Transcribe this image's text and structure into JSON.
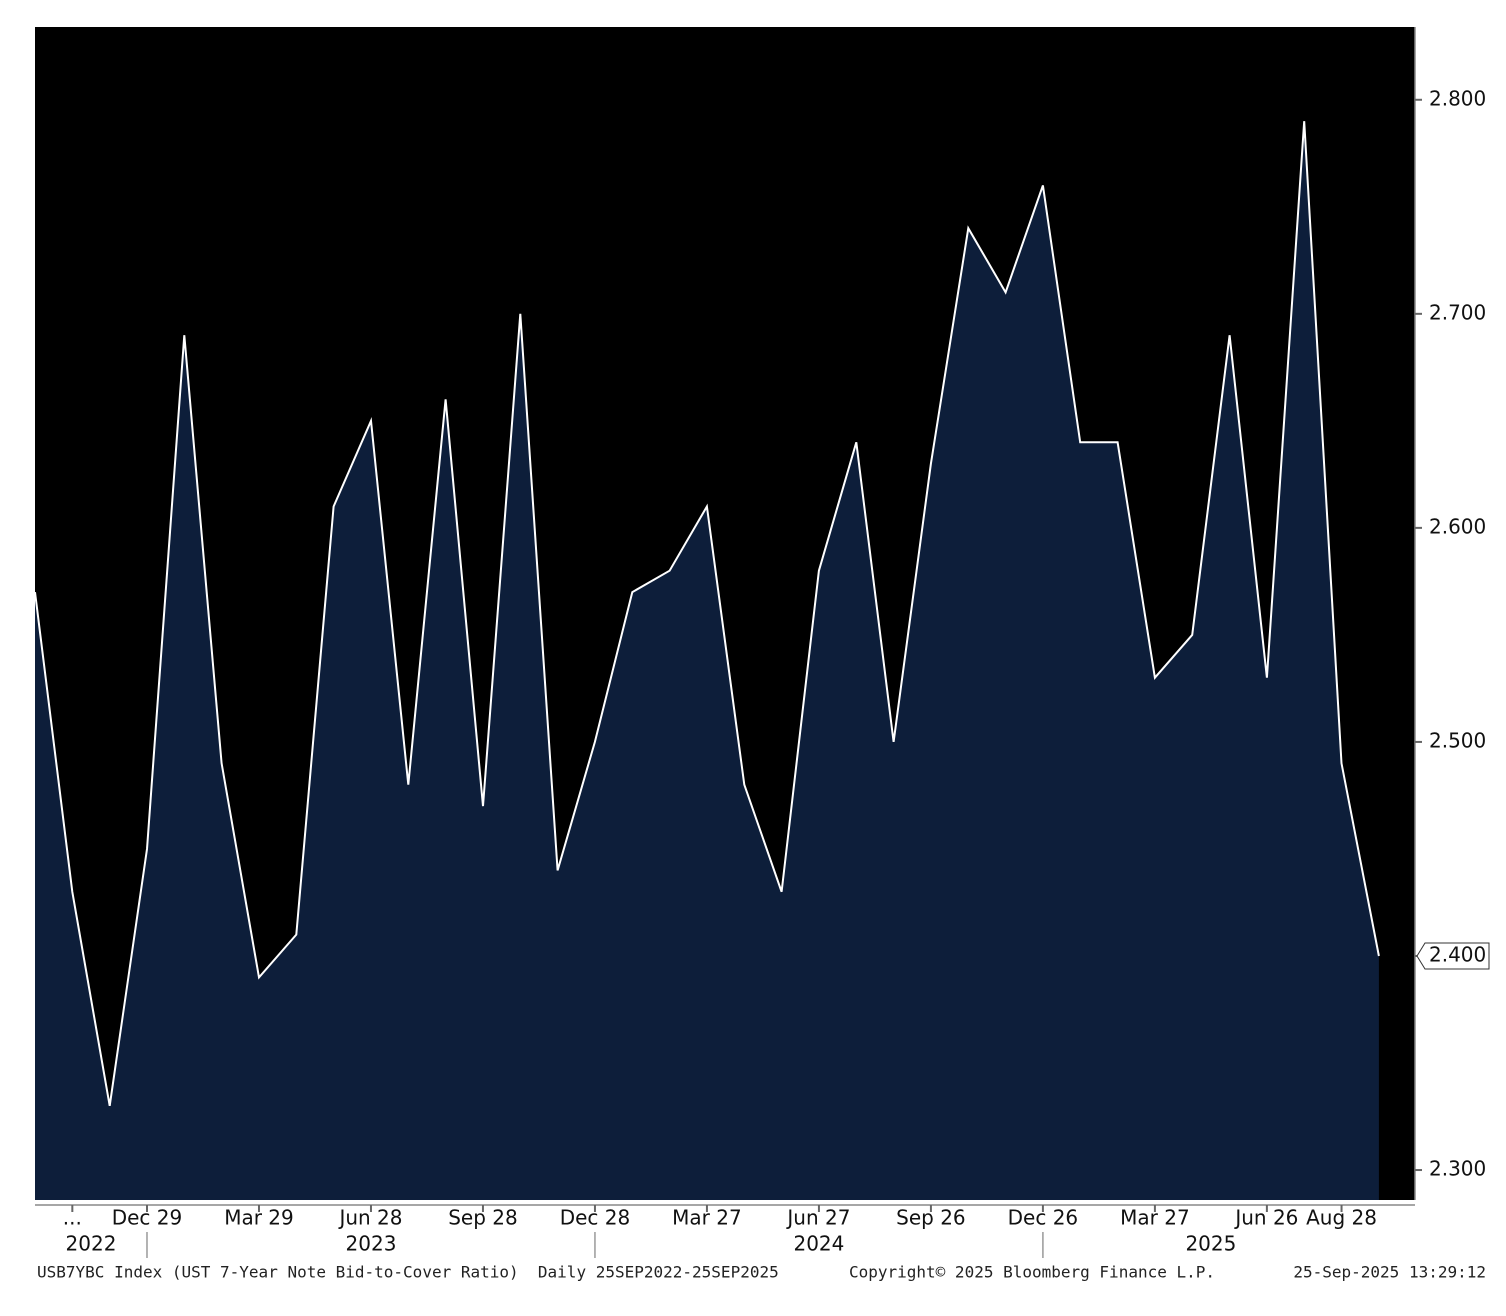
{
  "chart_data": {
    "type": "area",
    "series": [
      {
        "name": "USB7YBC Index",
        "color": "#ffffff",
        "fill": "#0d1e3a",
        "values": [
          2.57,
          2.43,
          2.33,
          2.45,
          2.69,
          2.49,
          2.39,
          2.41,
          2.61,
          2.65,
          2.48,
          2.66,
          2.47,
          2.7,
          2.44,
          2.5,
          2.57,
          2.58,
          2.61,
          2.48,
          2.43,
          2.58,
          2.64,
          2.5,
          2.63,
          2.74,
          2.71,
          2.76,
          2.64,
          2.64,
          2.53,
          2.55,
          2.69,
          2.53,
          2.79,
          2.49,
          2.4
        ],
        "value_labels": [
          null,
          null,
          null,
          null,
          null,
          null,
          null,
          null,
          null,
          null,
          null,
          null,
          null,
          null,
          null,
          null,
          null,
          null,
          null,
          null,
          null,
          null,
          null,
          null,
          null,
          null,
          null,
          null,
          null,
          null,
          null,
          null,
          null,
          null,
          null,
          null,
          "2.400"
        ]
      }
    ],
    "categories": [
      null,
      "...",
      null,
      "Dec 29",
      null,
      null,
      "Mar 29",
      null,
      null,
      "Jun 28",
      null,
      null,
      "Sep 28",
      null,
      null,
      "Dec 28",
      null,
      null,
      "Mar 27",
      null,
      null,
      "Jun 27",
      null,
      null,
      "Sep 26",
      null,
      null,
      "Dec 26",
      null,
      null,
      "Mar 27",
      null,
      null,
      "Jun 26",
      null,
      "Aug 28",
      null
    ],
    "years": [
      "2022",
      "2023",
      "2024",
      "2025"
    ],
    "ylim": [
      2.286,
      2.834
    ],
    "yticks": [
      {
        "value": 2.3,
        "label": "2.300"
      },
      {
        "value": 2.4,
        "label": "2.400"
      },
      {
        "value": 2.5,
        "label": "2.500"
      },
      {
        "value": 2.6,
        "label": "2.600"
      },
      {
        "value": 2.7,
        "label": "2.700"
      },
      {
        "value": 2.8,
        "label": "2.800"
      }
    ],
    "footer": {
      "left": "USB7YBC Index (UST 7-Year Note Bid-to-Cover Ratio)  Daily 25SEP2022-25SEP2025",
      "center": "Copyright© 2025 Bloomberg Finance L.P.",
      "right": "25-Sep-2025 13:29:12"
    }
  }
}
